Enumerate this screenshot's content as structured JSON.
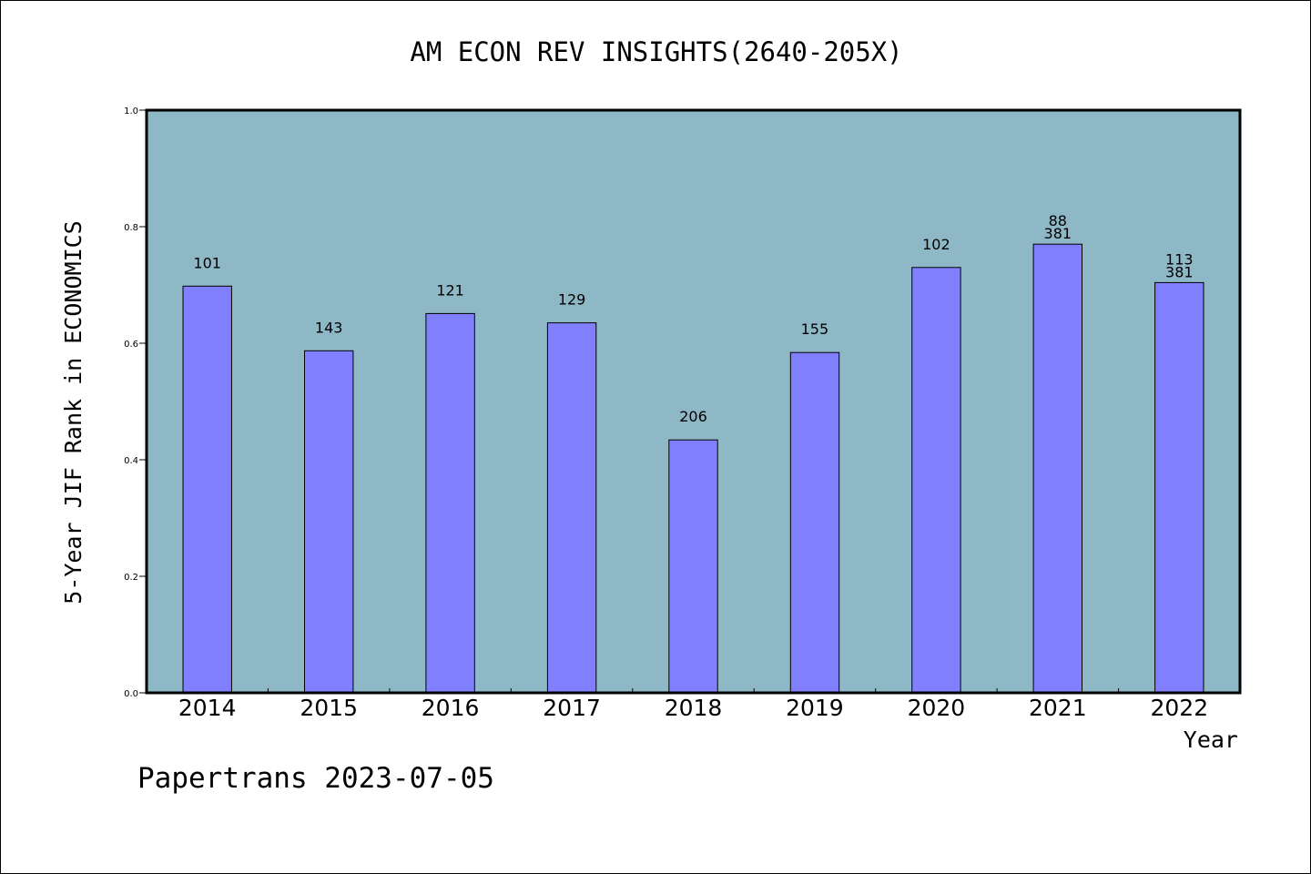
{
  "chart_data": {
    "type": "bar",
    "title": "AM ECON REV INSIGHTS(2640-205X)",
    "xlabel": "Year",
    "ylabel": "5-Year JIF Rank in ECONOMICS",
    "ylim": [
      0,
      1.0
    ],
    "yticks": [
      "0.0",
      "0.2",
      "0.4",
      "0.6",
      "0.8",
      "1.0"
    ],
    "categories": [
      "2014",
      "2015",
      "2016",
      "2017",
      "2018",
      "2019",
      "2020",
      "2021",
      "2022"
    ],
    "values": [
      0.698,
      0.587,
      0.651,
      0.635,
      0.434,
      0.584,
      0.73,
      0.77,
      0.704
    ],
    "labels": [
      [
        "101"
      ],
      [
        "143"
      ],
      [
        "121"
      ],
      [
        "129"
      ],
      [
        "206"
      ],
      [
        "155"
      ],
      [
        "102"
      ],
      [
        "88",
        "381"
      ],
      [
        "113",
        "381"
      ]
    ],
    "grid": false,
    "legend": "none",
    "colors": {
      "plot_background": "#8fb8c7",
      "bar_fill": "#8080ff",
      "bar_stroke": "#000000",
      "axis": "#000000"
    }
  },
  "footer": {
    "text": "Papertrans 2023-07-05"
  }
}
